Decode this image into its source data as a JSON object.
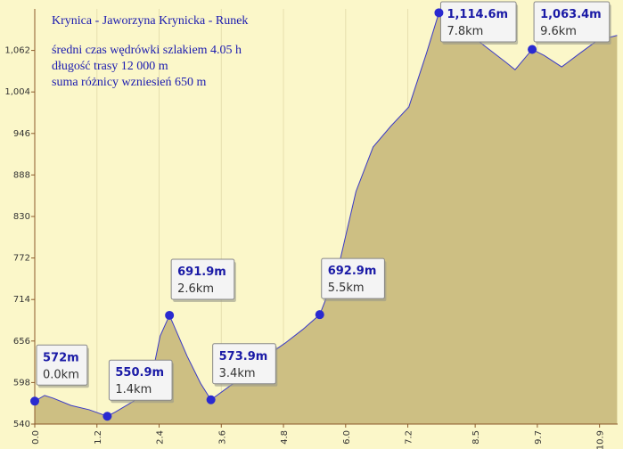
{
  "chart_data": {
    "type": "area",
    "title": "Krynica - Jaworzyna Krynicka - Runek",
    "info": [
      "średni czas wędrówki szlakiem 4.05 h",
      "długość trasy 12 000 m",
      "suma różnicy wzniesień 650 m"
    ],
    "x": [
      0,
      0.19,
      0.36,
      0.7,
      1.05,
      1.4,
      1.56,
      1.91,
      2.25,
      2.42,
      2.6,
      2.94,
      3.2,
      3.4,
      3.8,
      4.14,
      4.47,
      4.83,
      5.17,
      5.5,
      5.86,
      6.2,
      6.53,
      6.87,
      7.22,
      7.56,
      7.8,
      8.09,
      8.42,
      8.76,
      9.1,
      9.27,
      9.6,
      9.83,
      10.17,
      10.52,
      10.86,
      11.24
    ],
    "values": [
      572,
      580,
      576,
      566,
      560,
      550.9,
      557,
      572,
      603,
      663,
      691.9,
      635,
      597,
      573.9,
      595,
      610,
      635,
      653,
      672,
      692.9,
      759,
      865,
      927,
      956,
      983,
      1058,
      1114.6,
      1095,
      1083,
      1064,
      1045,
      1035,
      1063.4,
      1055,
      1039,
      1058,
      1076,
      1083
    ],
    "line_color": "#3a3ac8",
    "fill_color": "#cdbf83",
    "background": "#fbf7c9",
    "points": {
      "x": [
        0,
        1.4,
        2.6,
        3.4,
        5.5,
        7.8,
        9.6
      ],
      "values": [
        572,
        550.9,
        691.9,
        573.9,
        692.9,
        1114.6,
        1063.4
      ],
      "value_labels": [
        "572m",
        "550.9m",
        "691.9m",
        "573.9m",
        "692.9m",
        "1,114.6m",
        "1,063.4m"
      ],
      "x_labels": [
        "0.0km",
        "1.4km",
        "2.6km",
        "3.4km",
        "5.5km",
        "7.8km",
        "9.6km"
      ],
      "color": "#2a2ad0"
    },
    "xlim": [
      0,
      11.25
    ],
    "ylim": [
      540,
      1120
    ],
    "xticks": [
      {
        "value": 0,
        "label": "0.0"
      },
      1.2,
      2.4,
      3.6,
      4.8,
      {
        "value": 6,
        "label": "6.0"
      },
      7.2,
      8.5,
      9.7,
      10.9
    ],
    "yticks": [
      540,
      598,
      656,
      714,
      772,
      830,
      888,
      946,
      {
        "value": 1004,
        "label": "1,004"
      },
      {
        "value": 1062,
        "label": "1,062"
      }
    ],
    "grid": true
  }
}
